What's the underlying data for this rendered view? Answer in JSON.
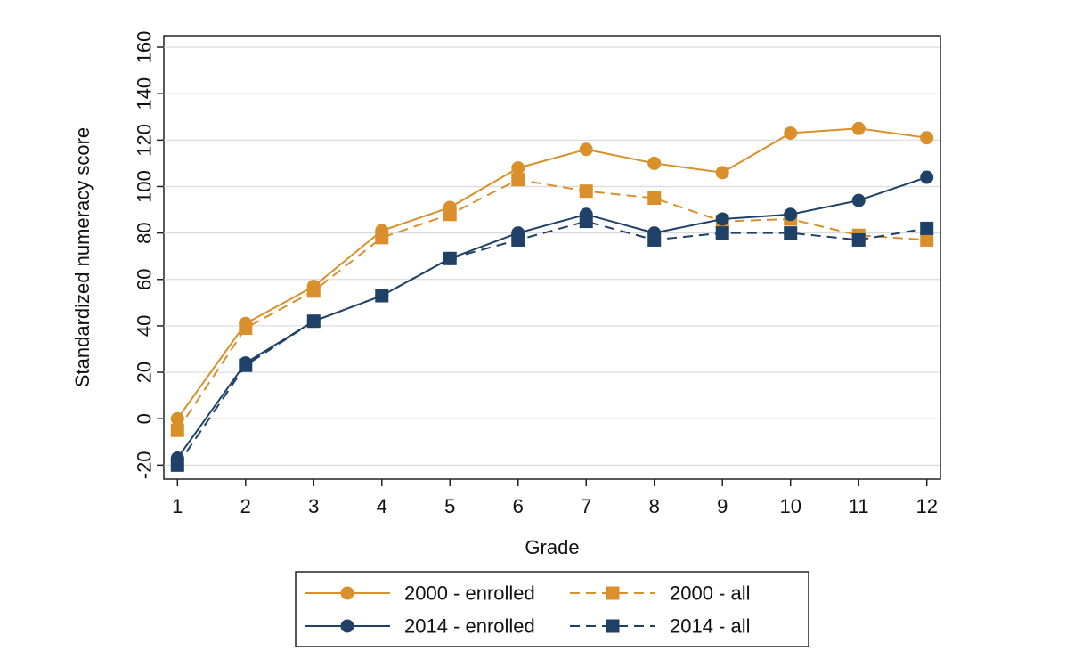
{
  "colors": {
    "orange": "#D9902C",
    "navy": "#1F4168",
    "grid": "#DADADA",
    "axis": "#222222"
  },
  "chart_data": {
    "type": "line",
    "xlabel": "Grade",
    "ylabel": "Standardized numeracy score",
    "x": [
      1,
      2,
      3,
      4,
      5,
      6,
      7,
      8,
      9,
      10,
      11,
      12
    ],
    "xlim": [
      0.8,
      12.2
    ],
    "ylim": [
      -26,
      165
    ],
    "yticks": [
      -20,
      0,
      20,
      40,
      60,
      80,
      100,
      120,
      140,
      160
    ],
    "grid": true,
    "legend_position": "bottom",
    "series": [
      {
        "name": "2000 - enrolled",
        "color": "#D9902C",
        "style": "solid",
        "marker": "circle",
        "values": [
          0,
          41,
          57,
          81,
          91,
          108,
          116,
          110,
          106,
          123,
          125,
          121
        ]
      },
      {
        "name": "2000 - all",
        "color": "#D9902C",
        "style": "dashed",
        "marker": "square",
        "values": [
          -5,
          39,
          55,
          78,
          88,
          103,
          98,
          95,
          85,
          86,
          79,
          77
        ]
      },
      {
        "name": "2014 - enrolled",
        "color": "#1F4168",
        "style": "solid",
        "marker": "circle",
        "values": [
          -17,
          24,
          42,
          53,
          69,
          80,
          88,
          80,
          86,
          88,
          94,
          104
        ]
      },
      {
        "name": "2014 - all",
        "color": "#1F4168",
        "style": "dashed",
        "marker": "square",
        "values": [
          -20,
          23,
          42,
          53,
          69,
          77,
          85,
          77,
          80,
          80,
          77,
          82
        ]
      }
    ]
  }
}
